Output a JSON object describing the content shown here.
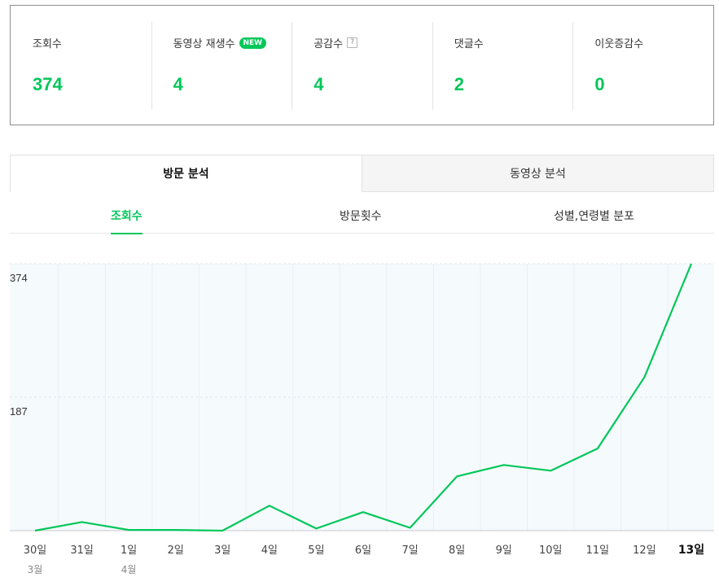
{
  "stats": [
    {
      "label": "조회수",
      "value": "374"
    },
    {
      "label": "동영상 재생수",
      "value": "4",
      "badge": "NEW"
    },
    {
      "label": "공감수",
      "value": "4",
      "help": "?"
    },
    {
      "label": "댓글수",
      "value": "2"
    },
    {
      "label": "이웃증감수",
      "value": "0"
    }
  ],
  "main_tabs": [
    {
      "label": "방문 분석",
      "active": true
    },
    {
      "label": "동영상 분석",
      "active": false
    }
  ],
  "sub_tabs": [
    {
      "label": "조회수",
      "active": true
    },
    {
      "label": "방문횟수",
      "active": false
    },
    {
      "label": "성별,연령별 분포",
      "active": false
    }
  ],
  "colors": {
    "accent": "#03c75a",
    "chart_bg": "#f5fafd",
    "grid": "#dfe6ea"
  },
  "chart_data": {
    "type": "area",
    "x": [
      "30일",
      "31일",
      "1일",
      "2일",
      "3일",
      "4일",
      "5일",
      "6일",
      "7일",
      "8일",
      "9일",
      "10일",
      "11일",
      "12일",
      "13일"
    ],
    "months": {
      "30일": "3월",
      "1일": "4월"
    },
    "highlight": "13일",
    "series": [
      {
        "values": [
          0,
          12,
          1,
          1,
          0,
          35,
          3,
          26,
          4,
          76,
          92,
          84,
          115,
          215,
          374
        ]
      }
    ],
    "yticks": [
      187,
      374
    ],
    "ylim": [
      0,
      374
    ]
  }
}
